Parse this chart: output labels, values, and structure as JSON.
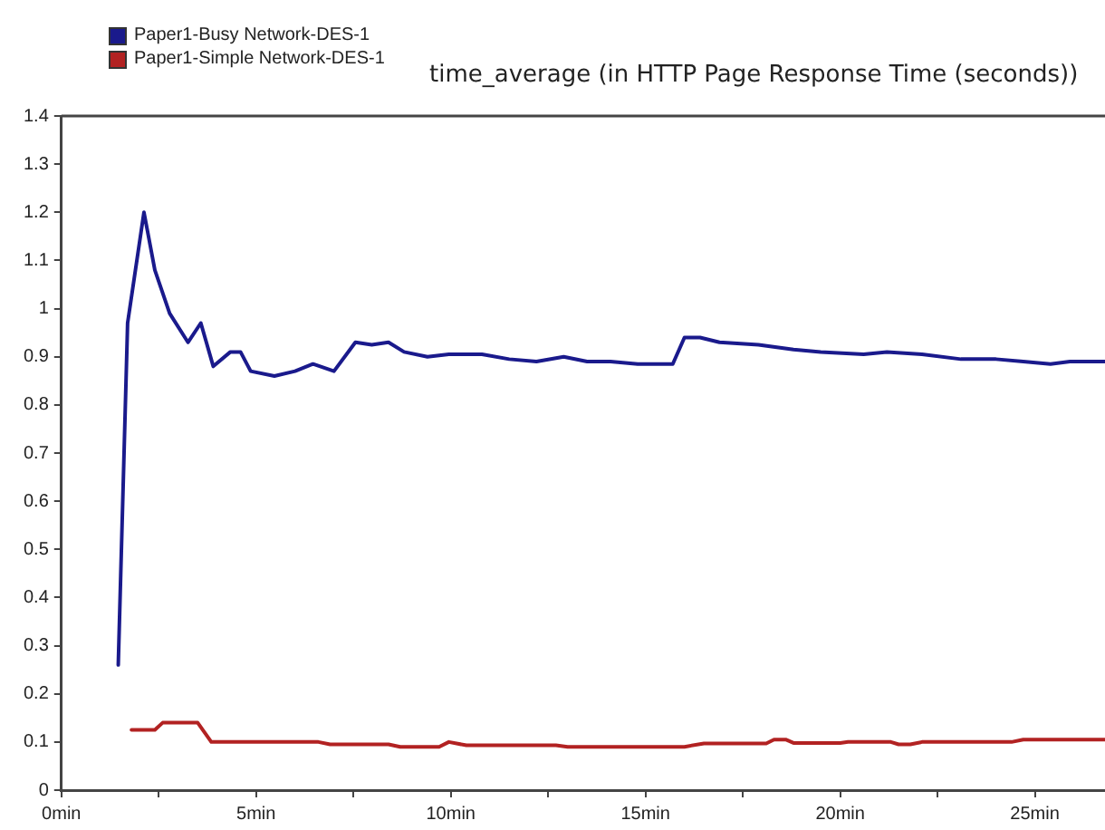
{
  "chart_data": {
    "type": "line",
    "title": "time_average (in HTTP Page Response Time (seconds))",
    "legend": "top left",
    "grid": false,
    "marker": "none",
    "line_style": "solid",
    "xlim": [
      0,
      26.8
    ],
    "xticks": [
      {
        "value": 0,
        "label": "0min"
      },
      {
        "value": 2.5,
        "label": null
      },
      {
        "value": 5,
        "label": "5min"
      },
      {
        "value": 7.5,
        "label": null
      },
      {
        "value": 10,
        "label": "10min"
      },
      {
        "value": 12.5,
        "label": null
      },
      {
        "value": 15,
        "label": "15min"
      },
      {
        "value": 17.5,
        "label": null
      },
      {
        "value": 20,
        "label": "20min"
      },
      {
        "value": 22.5,
        "label": null
      },
      {
        "value": 25,
        "label": "25min"
      }
    ],
    "ylim": [
      0,
      1.4
    ],
    "yticks": [
      0,
      0.1,
      0.2,
      0.3,
      0.4,
      0.5,
      0.6,
      0.7,
      0.8,
      0.9,
      1,
      1.1,
      1.2,
      1.3,
      1.4
    ],
    "series": [
      {
        "name": "Paper1-Busy Network-DES-1",
        "color": "#1a1a8c",
        "x": [
          1.46,
          1.7,
          2.12,
          2.4,
          2.78,
          3.25,
          3.58,
          3.9,
          4.34,
          4.6,
          4.86,
          5.47,
          6.0,
          6.46,
          7.0,
          7.55,
          7.97,
          8.4,
          8.8,
          9.4,
          9.95,
          10.8,
          11.5,
          12.2,
          12.9,
          13.5,
          14.1,
          14.8,
          15.7,
          16.0,
          16.4,
          16.9,
          17.9,
          18.8,
          19.5,
          20.6,
          21.2,
          22.1,
          23.1,
          24.0,
          24.7,
          25.4,
          25.9,
          26.8
        ],
        "values": [
          0.26,
          0.97,
          1.2,
          1.08,
          0.99,
          0.93,
          0.97,
          0.88,
          0.91,
          0.91,
          0.87,
          0.86,
          0.87,
          0.885,
          0.87,
          0.93,
          0.925,
          0.93,
          0.91,
          0.9,
          0.905,
          0.905,
          0.895,
          0.89,
          0.9,
          0.89,
          0.89,
          0.885,
          0.885,
          0.94,
          0.94,
          0.93,
          0.925,
          0.915,
          0.91,
          0.905,
          0.91,
          0.905,
          0.895,
          0.895,
          0.89,
          0.885,
          0.89,
          0.89
        ]
      },
      {
        "name": "Paper1-Simple Network-DES-1",
        "color": "#b22222",
        "x": [
          1.8,
          2.4,
          2.6,
          3.5,
          3.85,
          6.6,
          6.9,
          8.4,
          8.7,
          9.7,
          9.95,
          10.4,
          12.7,
          13.0,
          16.0,
          16.5,
          18.1,
          18.3,
          18.6,
          18.8,
          20.0,
          20.2,
          21.3,
          21.5,
          21.8,
          22.1,
          24.4,
          24.7,
          26.8
        ],
        "values": [
          0.125,
          0.125,
          0.14,
          0.14,
          0.1,
          0.1,
          0.095,
          0.095,
          0.09,
          0.09,
          0.1,
          0.093,
          0.093,
          0.09,
          0.09,
          0.097,
          0.097,
          0.105,
          0.105,
          0.098,
          0.098,
          0.1,
          0.1,
          0.095,
          0.095,
          0.1,
          0.1,
          0.105,
          0.105
        ]
      }
    ]
  }
}
